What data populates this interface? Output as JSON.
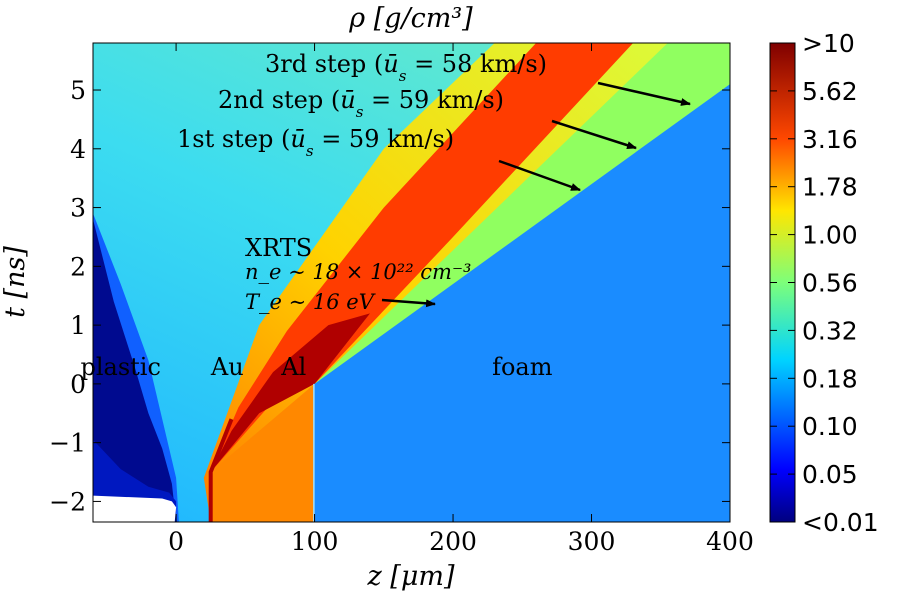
{
  "chart_data": {
    "type": "heatmap",
    "title": "ρ [g/cm³]",
    "xlabel": "z [μm]",
    "ylabel": "t [ns]",
    "xlim": [
      -60,
      400
    ],
    "ylim": [
      -2.35,
      5.8
    ],
    "xticks": [
      "0",
      "100",
      "200",
      "300",
      "400"
    ],
    "xtick_values": [
      0,
      100,
      200,
      300,
      400
    ],
    "yticks": [
      "−2",
      "−1",
      "0",
      "1",
      "2",
      "3",
      "4",
      "5"
    ],
    "ytick_values": [
      -2,
      -1,
      0,
      1,
      2,
      3,
      4,
      5
    ],
    "colorbar": {
      "label_values": [
        ">10",
        "5.62",
        "3.16",
        "1.78",
        "1.00",
        "0.56",
        "0.32",
        "0.18",
        "0.10",
        "0.05",
        "<0.01"
      ],
      "colormap": "jet"
    },
    "regions": [
      {
        "label": "plastic",
        "z": -40,
        "t": 0.15
      },
      {
        "label": "Au",
        "z": 37,
        "t": 0.15
      },
      {
        "label": "Al",
        "z": 85,
        "t": 0.15
      },
      {
        "label": "foam",
        "z": 250,
        "t": 0.15
      }
    ],
    "annotations": {
      "step3": "3rd step ($\\bar{u}_s=58$ km/s)",
      "step2": "2nd step ($\\bar{u}_s=59$ km/s)",
      "step1": "1st step ($\\bar{u}_s=59$ km/s)",
      "xrts": "XRTS",
      "ne": "n_e ∼ 18 × 10²² cm⁻³",
      "te": "T_e ∼ 16 eV"
    },
    "shock_front": [
      [
        100,
        0
      ],
      [
        400,
        5.1
      ]
    ],
    "colors": {
      "foam": "#1a8cff",
      "al_pre": "#ff8800",
      "au_line": "#b00000",
      "plastic_dark": "#000a8f",
      "background": "#2bc3f0"
    }
  }
}
